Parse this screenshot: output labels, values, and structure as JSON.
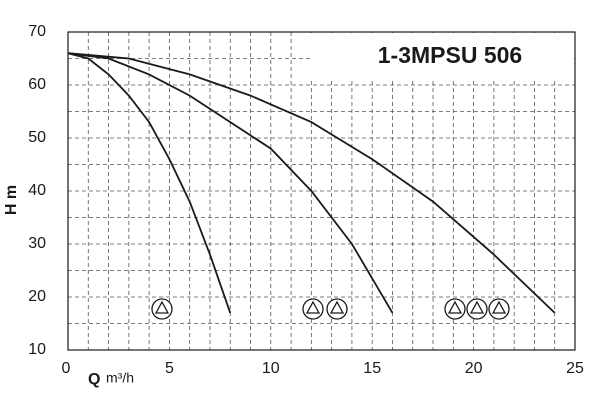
{
  "chart_data": {
    "type": "line",
    "title": "1-3MPSU 506",
    "xlabel": "Q",
    "xunit": "m³/h",
    "ylabel": "H m",
    "xlim": [
      0,
      25
    ],
    "xticks": [
      0,
      5,
      10,
      15,
      20,
      25
    ],
    "ylim": [
      10,
      70
    ],
    "yticks": [
      10,
      20,
      30,
      40,
      50,
      60,
      70
    ],
    "grid": true,
    "series": [
      {
        "color": "#1a1a1a",
        "x": [
          0,
          1,
          2,
          3,
          4,
          5,
          6,
          7,
          8
        ],
        "values": [
          66,
          65,
          62,
          58,
          53,
          46,
          38,
          28,
          17
        ]
      },
      {
        "color": "#1a1a1a",
        "x": [
          0,
          2,
          4,
          6,
          8,
          10,
          12,
          14,
          16
        ],
        "values": [
          66,
          65,
          62,
          58,
          53,
          48,
          40,
          30,
          17
        ]
      },
      {
        "color": "#1a1a1a",
        "x": [
          0,
          3,
          6,
          9,
          12,
          15,
          18,
          21,
          24
        ],
        "values": [
          66,
          65,
          62,
          58,
          53,
          46,
          38,
          28,
          17
        ]
      }
    ]
  }
}
